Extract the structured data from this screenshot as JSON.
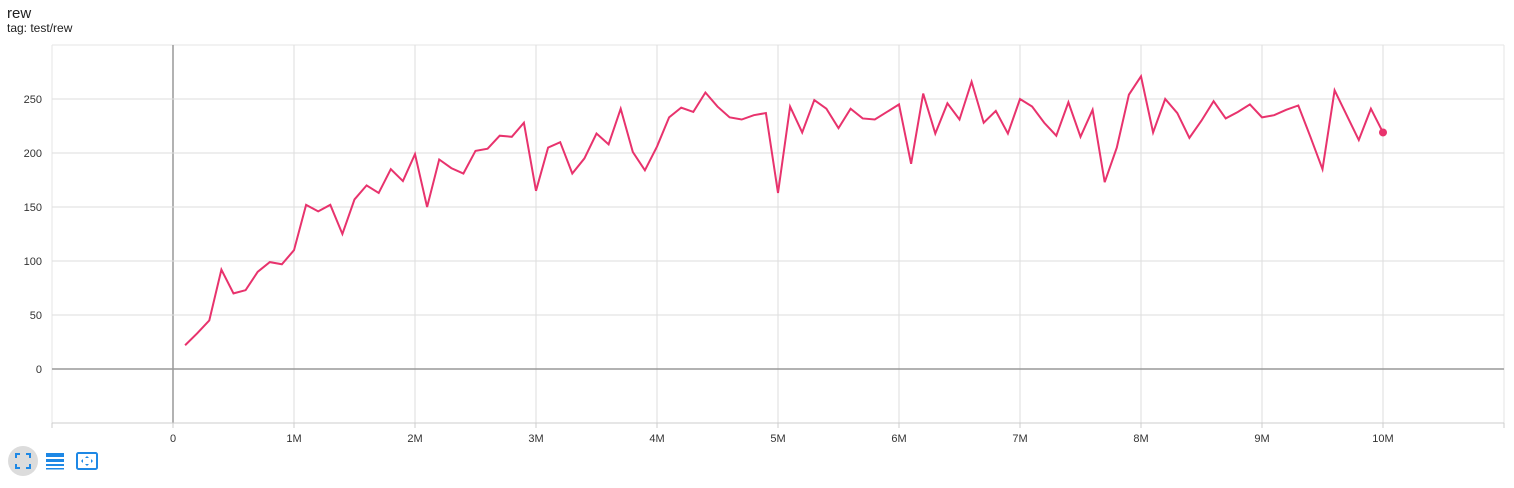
{
  "header": {
    "title": "rew",
    "subtitle": "tag: test/rew"
  },
  "toolbar": {
    "buttons": [
      {
        "name": "fullscreen-icon",
        "active": true
      },
      {
        "name": "list-icon",
        "active": false
      },
      {
        "name": "fit-domain-icon",
        "active": false
      }
    ],
    "accent": "#1e88e5"
  },
  "chart_data": {
    "type": "line",
    "title": "",
    "xlabel": "",
    "ylabel": "",
    "xlim": [
      -1000000,
      11000000
    ],
    "ylim": [
      -50,
      300
    ],
    "grid": true,
    "x_ticks": [
      0,
      1000000,
      2000000,
      3000000,
      4000000,
      5000000,
      6000000,
      7000000,
      8000000,
      9000000,
      10000000
    ],
    "x_tick_labels": [
      "0",
      "1M",
      "2M",
      "3M",
      "4M",
      "5M",
      "6M",
      "7M",
      "8M",
      "9M",
      "10M"
    ],
    "y_ticks": [
      0,
      50,
      100,
      150,
      200,
      250
    ],
    "y_tick_labels": [
      "0",
      "50",
      "100",
      "150",
      "200",
      "250"
    ],
    "series": [
      {
        "color": "#e8336d",
        "x_start": 100000,
        "x_step": 100000,
        "values": [
          22,
          33,
          45,
          92,
          70,
          73,
          90,
          99,
          97,
          110,
          152,
          146,
          152,
          125,
          157,
          170,
          163,
          185,
          174,
          199,
          150,
          194,
          186,
          181,
          202,
          204,
          216,
          215,
          228,
          165,
          205,
          210,
          181,
          195,
          218,
          208,
          241,
          201,
          184,
          206,
          233,
          242,
          238,
          256,
          243,
          233,
          231,
          235,
          237,
          163,
          243,
          219,
          249,
          241,
          223,
          241,
          232,
          231,
          238,
          245,
          190,
          255,
          218,
          246,
          231,
          266,
          228,
          239,
          218,
          250,
          243,
          228,
          216,
          247,
          215,
          240,
          173,
          205,
          254,
          271,
          219,
          250,
          237,
          214,
          230,
          248,
          232,
          238,
          245,
          233,
          235,
          240,
          244,
          215,
          185,
          258,
          235,
          212,
          241,
          219
        ]
      }
    ]
  }
}
